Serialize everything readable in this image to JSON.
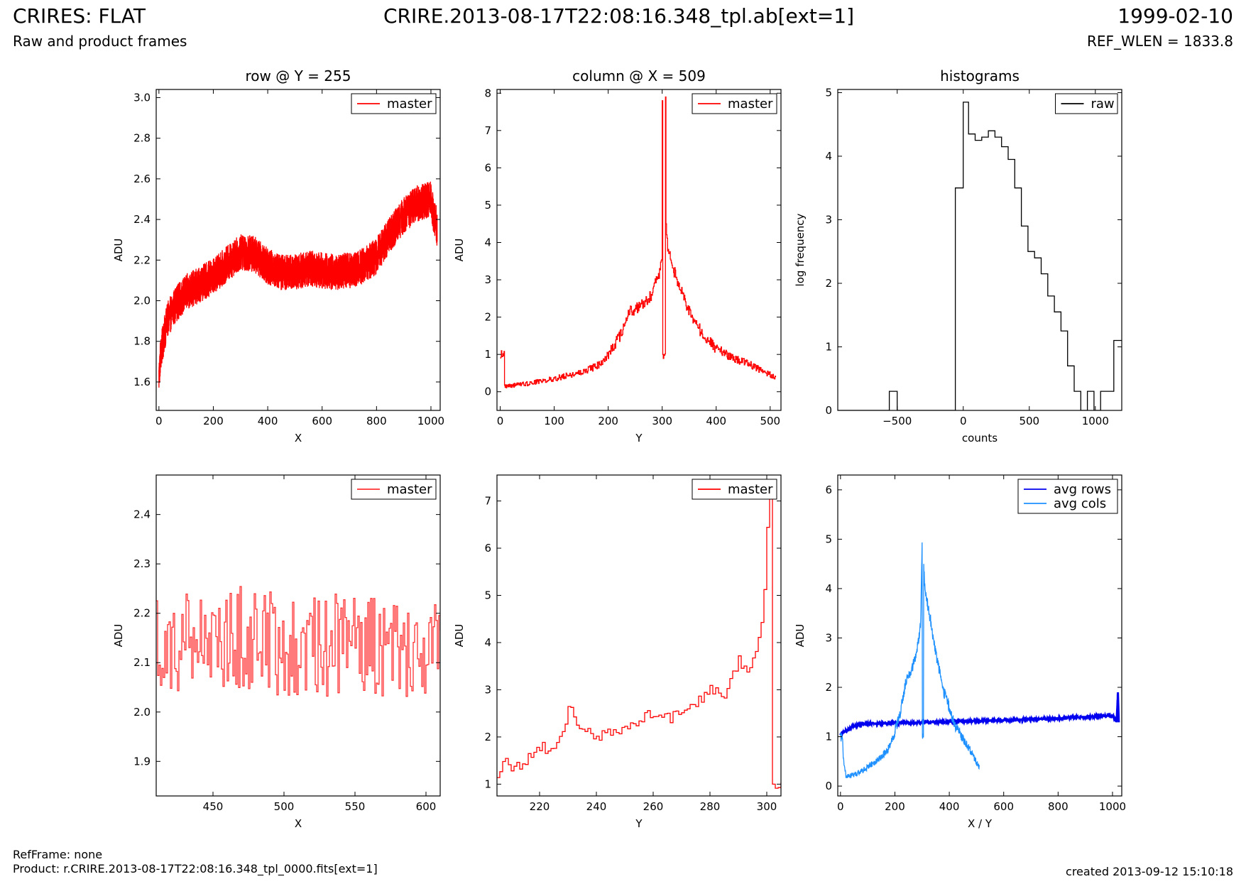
{
  "header": {
    "title_left": "CRIRES: FLAT",
    "subtitle_left": "Raw and product frames",
    "title_center": "CRIRE.2013-08-17T22:08:16.348_tpl.ab[ext=1]",
    "title_right": "1999-02-10",
    "subtitle_right": "REF_WLEN = 1833.8"
  },
  "footer": {
    "ref_frame": "RefFrame: none",
    "product": "Product: r.CRIRE.2013-08-17T22:08:16.348_tpl_0000.fits[ext=1]",
    "created": "created 2013-09-12 15:10:18"
  },
  "colors": {
    "master": "#ff0000",
    "master_zoom": "#ff3333",
    "raw": "#000000",
    "avg_rows": "#0000ee",
    "avg_cols": "#1e90ff"
  },
  "chart_data": [
    {
      "type": "line",
      "title": "row @ Y = 255",
      "xlabel": "X",
      "ylabel": "ADU",
      "xlim": [
        -10,
        1034
      ],
      "ylim": [
        1.46,
        3.04
      ],
      "xticks": [
        0,
        200,
        400,
        600,
        800,
        1000
      ],
      "yticks": [
        1.6,
        1.8,
        2.0,
        2.2,
        2.4,
        2.6,
        2.8,
        3.0
      ],
      "ytick_labels": [
        "1.6",
        "1.8",
        "2.0",
        "2.2",
        "2.4",
        "2.6",
        "2.8",
        "3.0"
      ],
      "legend": "top-right",
      "series": [
        {
          "name": "master",
          "color": "#ff0000",
          "step": false,
          "x": [
            0,
            5,
            15,
            30,
            60,
            100,
            150,
            200,
            250,
            300,
            350,
            400,
            450,
            500,
            550,
            600,
            650,
            700,
            750,
            800,
            850,
            900,
            950,
            1000,
            1010,
            1020,
            1023
          ],
          "y": [
            1.62,
            1.72,
            1.8,
            1.9,
            1.98,
            2.04,
            2.08,
            2.12,
            2.18,
            2.24,
            2.23,
            2.17,
            2.14,
            2.14,
            2.16,
            2.15,
            2.14,
            2.15,
            2.17,
            2.22,
            2.33,
            2.42,
            2.48,
            2.5,
            2.42,
            2.38,
            2.35
          ],
          "noise": 0.09,
          "density": 4
        }
      ]
    },
    {
      "type": "line",
      "title": "column @ X = 509",
      "xlabel": "Y",
      "ylabel": "ADU",
      "xlim": [
        -6,
        520
      ],
      "ylim": [
        -0.5,
        8.1
      ],
      "xticks": [
        0,
        100,
        200,
        300,
        400,
        500
      ],
      "yticks": [
        0,
        1,
        2,
        3,
        4,
        5,
        6,
        7,
        8
      ],
      "ytick_labels": [
        "0",
        "1",
        "2",
        "3",
        "4",
        "5",
        "6",
        "7",
        "8"
      ],
      "legend": "top-right",
      "series": [
        {
          "name": "master",
          "color": "#ff0000",
          "step": true,
          "x": [
            0,
            7,
            8,
            50,
            100,
            150,
            180,
            200,
            220,
            240,
            260,
            280,
            290,
            296,
            299,
            300,
            301,
            305,
            306,
            307,
            308,
            309,
            310,
            315,
            320,
            330,
            340,
            350,
            360,
            380,
            400,
            420,
            440,
            460,
            480,
            500,
            510
          ],
          "y": [
            1.0,
            1.0,
            0.15,
            0.22,
            0.35,
            0.52,
            0.7,
            1.0,
            1.45,
            2.15,
            2.3,
            2.6,
            3.0,
            3.2,
            3.6,
            7.8,
            1.0,
            1.0,
            7.9,
            4.5,
            4.2,
            4.0,
            3.8,
            3.6,
            3.3,
            2.9,
            2.5,
            2.15,
            1.85,
            1.45,
            1.15,
            1.0,
            0.85,
            0.75,
            0.6,
            0.45,
            0.35
          ],
          "noise": 0.15,
          "density": 1
        }
      ]
    },
    {
      "type": "line",
      "title": "histograms",
      "xlabel": "counts",
      "ylabel": "log frequency",
      "xlim": [
        -950,
        1200
      ],
      "ylim": [
        0,
        5.05
      ],
      "xticks": [
        -500,
        0,
        500,
        1000
      ],
      "yticks": [
        0,
        1,
        2,
        3,
        4,
        5
      ],
      "ytick_labels": [
        "0",
        "1",
        "2",
        "3",
        "4",
        "5"
      ],
      "legend": "top-right",
      "series": [
        {
          "name": "raw",
          "color": "#000000",
          "step": true,
          "x": [
            -950,
            -560,
            -500,
            -60,
            0,
            40,
            90,
            140,
            190,
            240,
            290,
            340,
            390,
            440,
            490,
            540,
            590,
            640,
            690,
            740,
            790,
            840,
            890,
            940,
            990,
            1040,
            1090,
            1140,
            1200
          ],
          "y": [
            0,
            0.3,
            0,
            3.5,
            4.85,
            4.35,
            4.25,
            4.3,
            4.4,
            4.3,
            4.15,
            3.95,
            3.5,
            2.9,
            2.5,
            2.4,
            2.15,
            1.8,
            1.55,
            1.25,
            0.7,
            0.3,
            0,
            0.3,
            0,
            0.3,
            0.3,
            1.1,
            1.1
          ],
          "noise": 0,
          "density": 1
        }
      ]
    },
    {
      "type": "line",
      "title": "",
      "xlabel": "X",
      "ylabel": "ADU",
      "xlim": [
        410,
        610
      ],
      "ylim": [
        1.83,
        2.48
      ],
      "xticks": [
        450,
        500,
        550,
        600
      ],
      "yticks": [
        1.9,
        2.0,
        2.1,
        2.2,
        2.3,
        2.4
      ],
      "ytick_labels": [
        "1.9",
        "2.0",
        "2.1",
        "2.2",
        "2.3",
        "2.4"
      ],
      "legend": "top-right",
      "series": [
        {
          "name": "master",
          "color": "#ff3333",
          "step": true,
          "x": [
            410,
            450,
            500,
            550,
            610
          ],
          "y": [
            2.15,
            2.15,
            2.14,
            2.14,
            2.13
          ],
          "noise": 0.11,
          "density": 1
        }
      ]
    },
    {
      "type": "line",
      "title": "",
      "xlabel": "Y",
      "ylabel": "ADU",
      "xlim": [
        205,
        305
      ],
      "ylim": [
        0.75,
        7.55
      ],
      "xticks": [
        220,
        240,
        260,
        280,
        300
      ],
      "yticks": [
        1,
        2,
        3,
        4,
        5,
        6,
        7
      ],
      "ytick_labels": [
        "1",
        "2",
        "3",
        "4",
        "5",
        "6",
        "7"
      ],
      "legend": "top-right",
      "series": [
        {
          "name": "master",
          "color": "#ff0000",
          "step": true,
          "x": [
            205,
            207,
            210,
            215,
            220,
            225,
            228,
            230,
            235,
            240,
            245,
            250,
            255,
            258,
            260,
            265,
            270,
            275,
            280,
            285,
            288,
            290,
            293,
            296,
            298,
            299,
            300,
            301,
            302,
            303,
            305
          ],
          "y": [
            1.2,
            1.5,
            1.3,
            1.5,
            1.8,
            1.7,
            2.0,
            2.6,
            2.2,
            2.0,
            2.1,
            2.2,
            2.3,
            2.5,
            2.5,
            2.4,
            2.5,
            2.7,
            3.0,
            2.9,
            3.3,
            3.6,
            3.3,
            3.9,
            4.4,
            5.2,
            6.5,
            7.4,
            1.0,
            1.0,
            1.0
          ],
          "noise": 0.12,
          "density": 1
        }
      ]
    },
    {
      "type": "line",
      "title": "",
      "xlabel": "X / Y",
      "ylabel": "ADU",
      "xlim": [
        -10,
        1034
      ],
      "ylim": [
        -0.2,
        6.3
      ],
      "xticks": [
        0,
        200,
        400,
        600,
        800,
        1000
      ],
      "yticks": [
        0,
        1,
        2,
        3,
        4,
        5,
        6
      ],
      "ytick_labels": [
        "0",
        "1",
        "2",
        "3",
        "4",
        "5",
        "6"
      ],
      "legend": "top-right",
      "series": [
        {
          "name": "avg rows",
          "color": "#0000ee",
          "step": false,
          "width": 3,
          "x": [
            0,
            20,
            50,
            80,
            150,
            300,
            500,
            700,
            900,
            1000,
            1015,
            1020,
            1023
          ],
          "y": [
            1.05,
            1.12,
            1.22,
            1.26,
            1.27,
            1.29,
            1.32,
            1.35,
            1.4,
            1.43,
            1.3,
            1.9,
            1.3
          ],
          "noise": 0.02,
          "density": 2
        },
        {
          "name": "avg cols",
          "color": "#1e90ff",
          "step": false,
          "width": 1.3,
          "x": [
            0,
            7,
            10,
            20,
            50,
            100,
            150,
            180,
            200,
            220,
            240,
            260,
            280,
            295,
            300,
            301,
            305,
            306,
            310,
            330,
            350,
            380,
            400,
            420,
            450,
            480,
            511
          ],
          "y": [
            1.0,
            1.0,
            0.6,
            0.2,
            0.22,
            0.38,
            0.58,
            0.8,
            1.1,
            1.5,
            2.1,
            2.3,
            2.7,
            3.3,
            4.9,
            1.0,
            1.0,
            4.5,
            4.0,
            3.4,
            2.7,
            1.9,
            1.6,
            1.25,
            0.95,
            0.7,
            0.38
          ],
          "noise": 0.12,
          "density": 1
        }
      ]
    }
  ]
}
